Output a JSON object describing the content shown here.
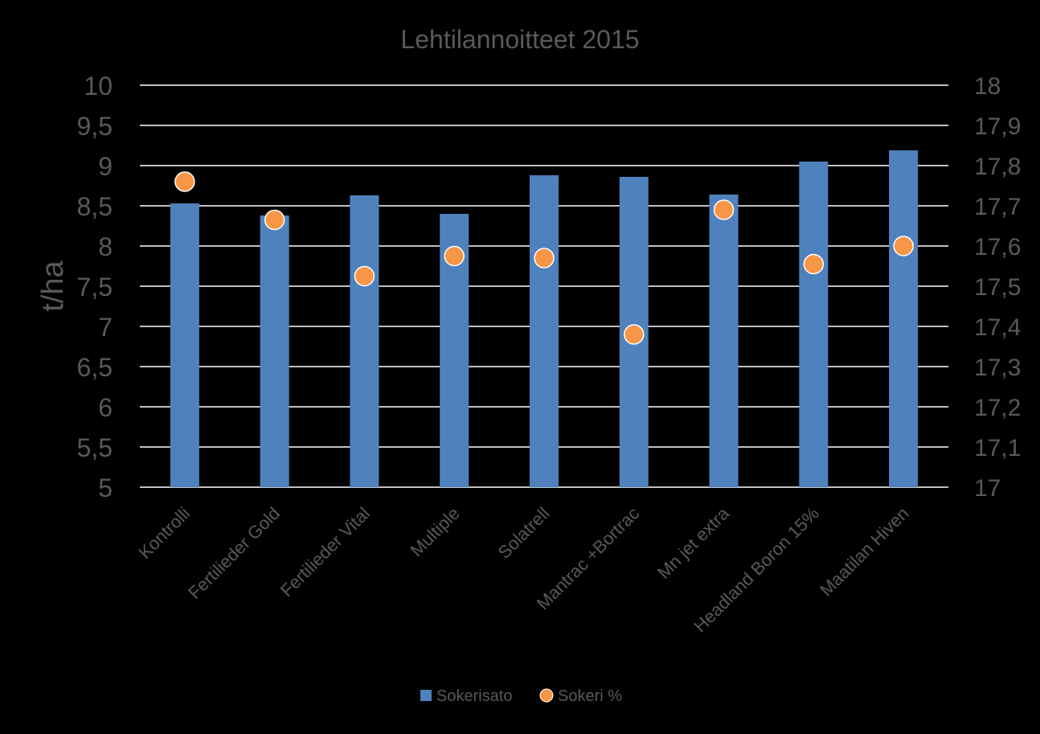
{
  "chart_data": {
    "type": "bar",
    "title": "Lehtilannoitteet 2015",
    "ylabel": "t/ha",
    "y2label": "",
    "categories": [
      "Kontrolli",
      "Fertilieder Gold",
      "Fertilieder Vital",
      "Multiple",
      "Solatrell",
      "Mantrac +Bortrac",
      "Mn jet extra",
      "Headland Boron 15%",
      "Maatilan Hiven"
    ],
    "series": [
      {
        "name": "Sokerisato",
        "type": "bar",
        "axis": "left",
        "color": "#4f81bd",
        "values": [
          8.53,
          8.38,
          8.63,
          8.4,
          8.88,
          8.86,
          8.64,
          9.05,
          9.19
        ]
      },
      {
        "name": "Sokeri %",
        "type": "scatter",
        "axis": "right",
        "color": "#f79646",
        "values": [
          17.76,
          17.665,
          17.525,
          17.575,
          17.57,
          17.38,
          17.69,
          17.555,
          17.6
        ]
      }
    ],
    "ylim": [
      5,
      10
    ],
    "y2lim": [
      17,
      18
    ],
    "yticks": [
      "5",
      "5,5",
      "6",
      "6,5",
      "7",
      "7,5",
      "8",
      "8,5",
      "9",
      "9,5",
      "10"
    ],
    "y2ticks": [
      "17",
      "17,1",
      "17,2",
      "17,3",
      "17,4",
      "17,5",
      "17,6",
      "17,7",
      "17,8",
      "17,9",
      "18"
    ],
    "grid": true,
    "legend_position": "bottom",
    "colors": {
      "background": "#000000",
      "text": "#595959",
      "grid": "#ffffff",
      "axis": "#ffffff"
    }
  }
}
